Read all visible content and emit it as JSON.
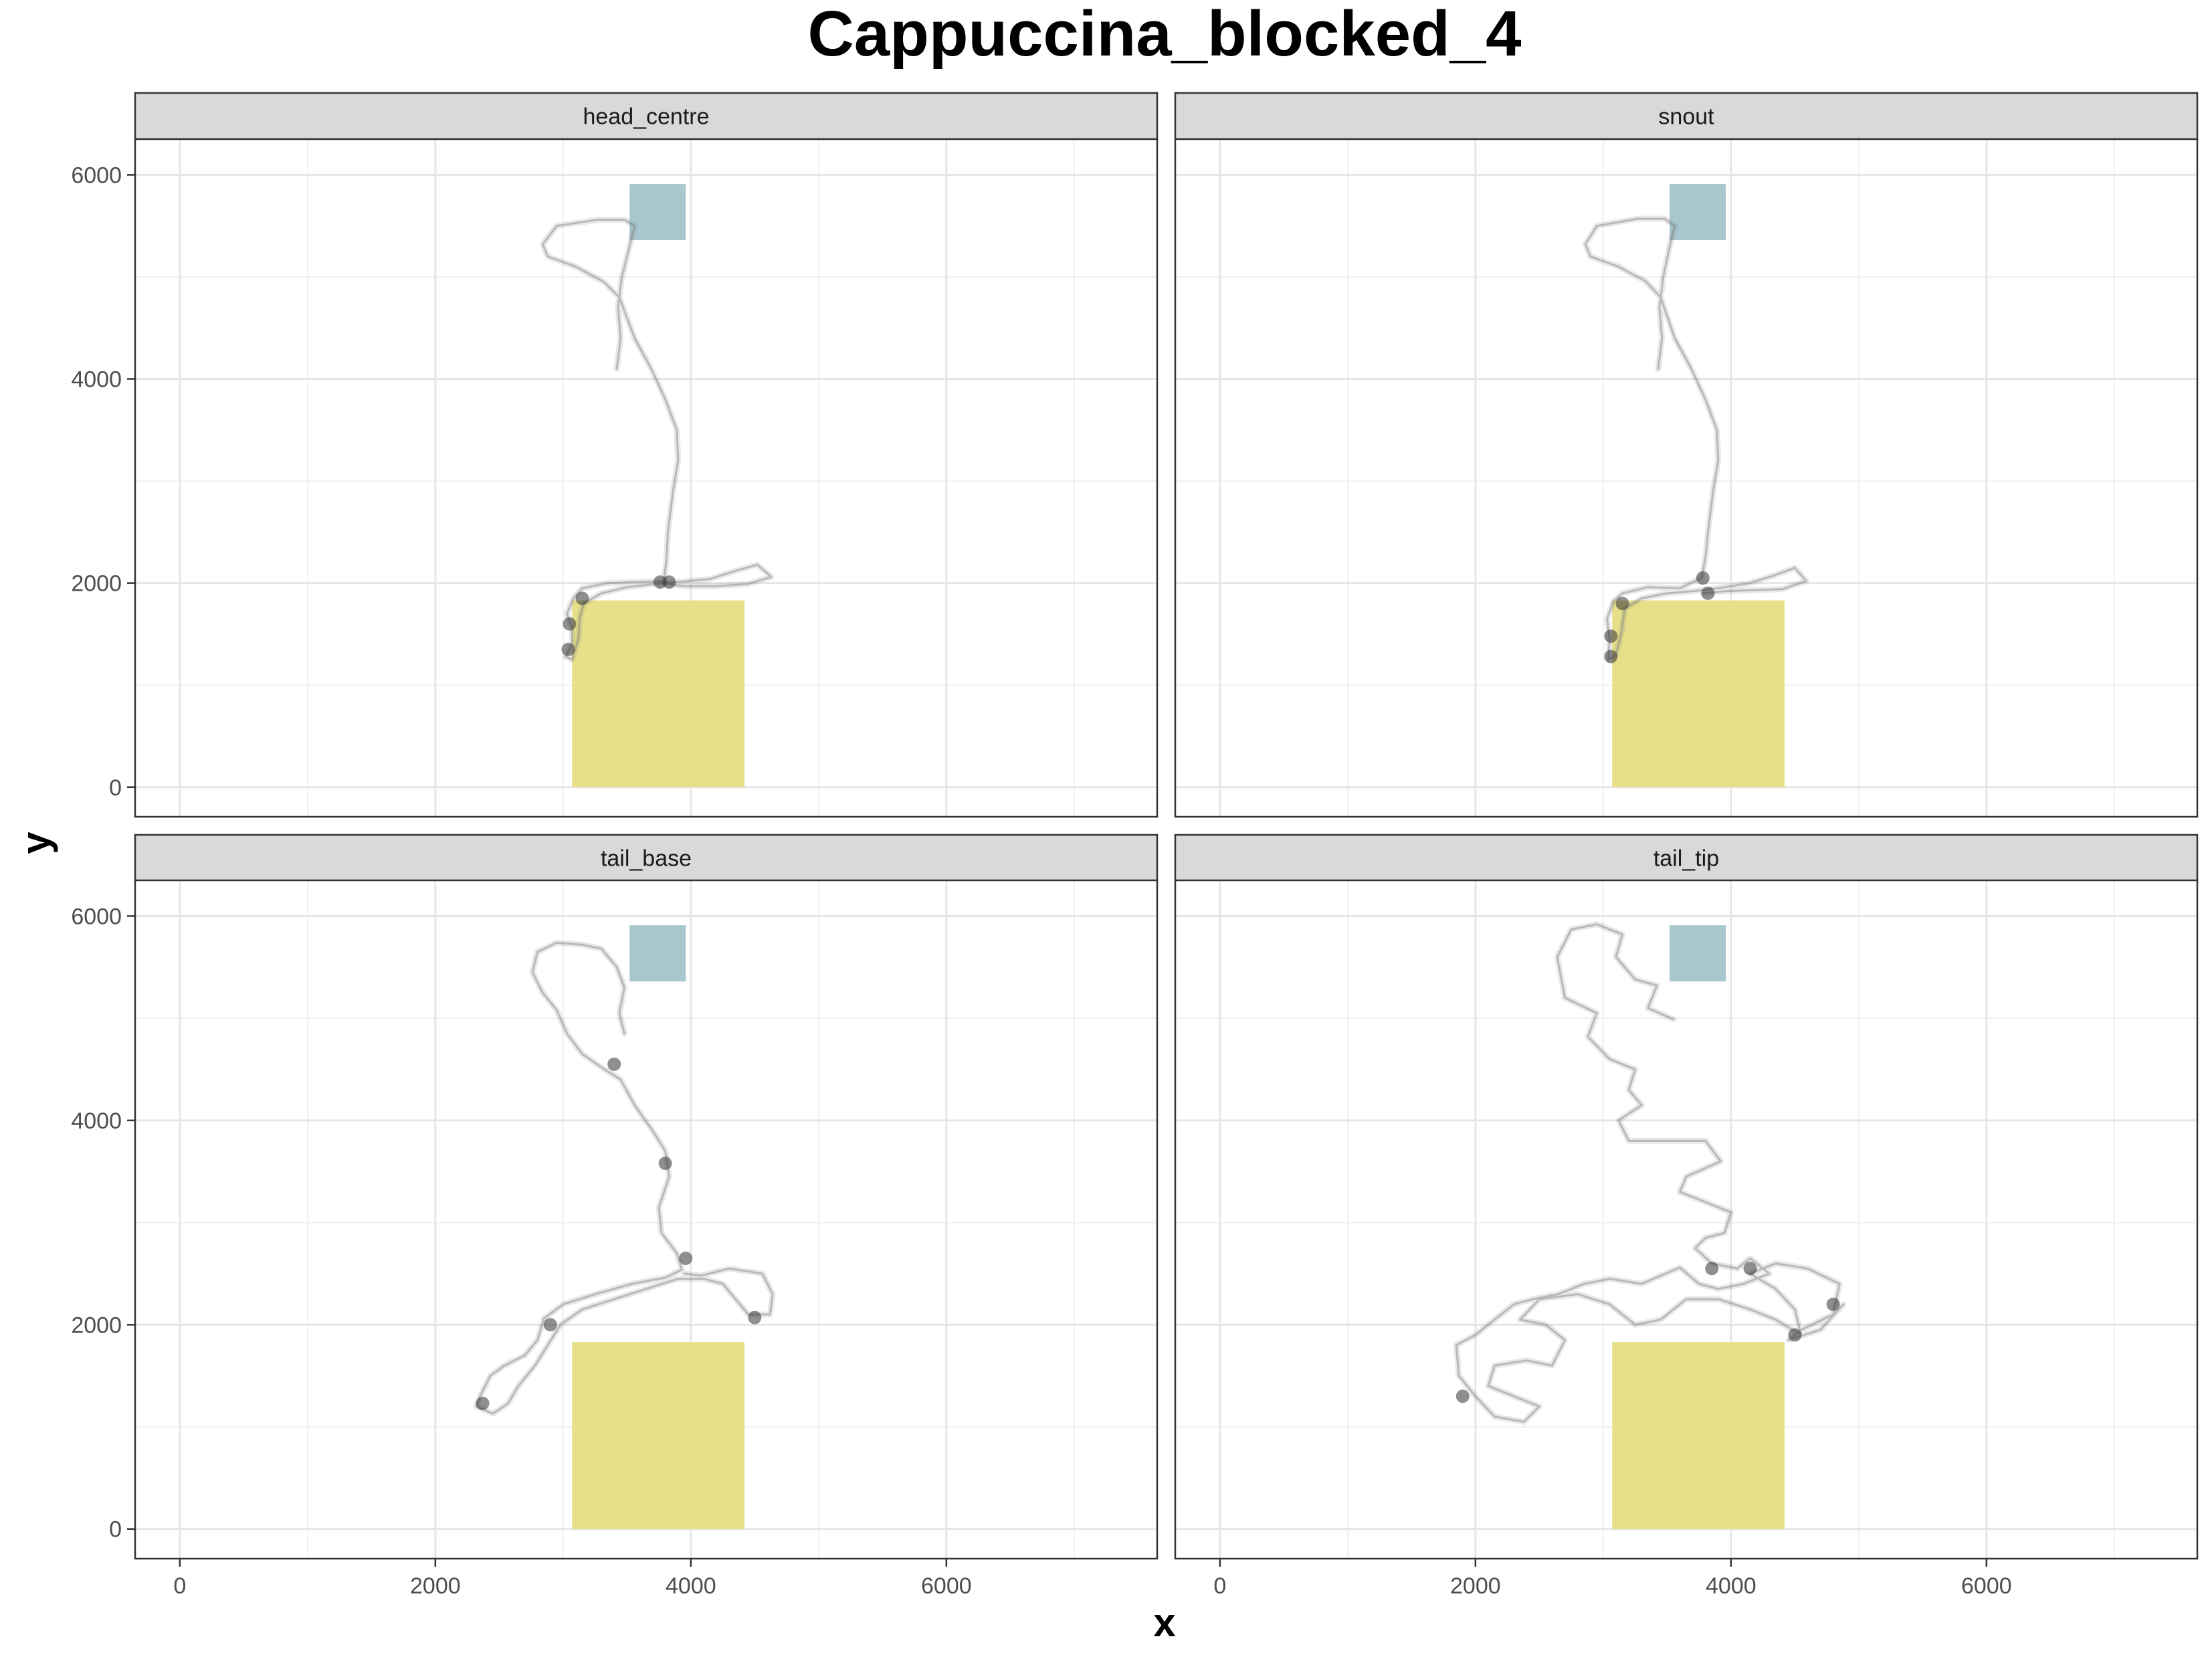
{
  "chart_data": {
    "type": "faceted-path",
    "title": "Cappuccina_blocked_4",
    "xlabel": "x",
    "ylabel": "y",
    "xlim": [
      -350,
      7650
    ],
    "ylim": [
      -290,
      6350
    ],
    "xticks": [
      0,
      2000,
      4000,
      6000
    ],
    "yticks": [
      0,
      2000,
      4000,
      6000
    ],
    "x_minor_gridlines": [
      1000,
      3000,
      5000,
      7000
    ],
    "y_minor_gridlines": [
      1000,
      3000,
      5000
    ],
    "grid": true,
    "regions": [
      {
        "color": "#e6e08a",
        "x": [
          3070,
          4420
        ],
        "y": [
          0,
          1830
        ]
      },
      {
        "color": "#a8c7ce",
        "x": [
          3520,
          3960
        ],
        "y": [
          5360,
          5910
        ]
      }
    ],
    "path_color": "#808080",
    "panels": [
      {
        "label": "head_centre",
        "path": [
          [
            3420,
            4100
          ],
          [
            3450,
            4400
          ],
          [
            3430,
            4700
          ],
          [
            3460,
            5000
          ],
          [
            3520,
            5300
          ],
          [
            3560,
            5500
          ],
          [
            3480,
            5560
          ],
          [
            3270,
            5560
          ],
          [
            2950,
            5500
          ],
          [
            2840,
            5320
          ],
          [
            2880,
            5200
          ],
          [
            3100,
            5100
          ],
          [
            3320,
            4950
          ],
          [
            3440,
            4800
          ],
          [
            3560,
            4400
          ],
          [
            3690,
            4100
          ],
          [
            3800,
            3800
          ],
          [
            3890,
            3500
          ],
          [
            3900,
            3200
          ],
          [
            3860,
            2900
          ],
          [
            3820,
            2500
          ],
          [
            3810,
            2250
          ],
          [
            3790,
            2020
          ],
          [
            3600,
            2010
          ],
          [
            3350,
            2000
          ],
          [
            3150,
            1950
          ],
          [
            3080,
            1850
          ],
          [
            3030,
            1700
          ],
          [
            3070,
            1560
          ],
          [
            3070,
            1400
          ],
          [
            3020,
            1280
          ],
          [
            3070,
            1250
          ],
          [
            3120,
            1450
          ],
          [
            3130,
            1650
          ],
          [
            3160,
            1800
          ],
          [
            3300,
            1900
          ],
          [
            3500,
            1960
          ],
          [
            3700,
            1990
          ],
          [
            3900,
            2010
          ],
          [
            4150,
            2040
          ],
          [
            4350,
            2120
          ],
          [
            4520,
            2180
          ],
          [
            4630,
            2060
          ],
          [
            4440,
            1990
          ],
          [
            4180,
            1970
          ],
          [
            3950,
            1970
          ],
          [
            3750,
            2000
          ]
        ],
        "clusters": [
          [
            3830,
            2010
          ],
          [
            3760,
            2010
          ],
          [
            3050,
            1600
          ],
          [
            3040,
            1350
          ],
          [
            3150,
            1850
          ]
        ]
      },
      {
        "label": "snout",
        "path": [
          [
            3430,
            4100
          ],
          [
            3460,
            4400
          ],
          [
            3440,
            4700
          ],
          [
            3470,
            5000
          ],
          [
            3520,
            5300
          ],
          [
            3560,
            5500
          ],
          [
            3480,
            5570
          ],
          [
            3270,
            5570
          ],
          [
            2950,
            5500
          ],
          [
            2860,
            5320
          ],
          [
            2900,
            5200
          ],
          [
            3120,
            5100
          ],
          [
            3330,
            4960
          ],
          [
            3450,
            4800
          ],
          [
            3560,
            4400
          ],
          [
            3690,
            4100
          ],
          [
            3800,
            3800
          ],
          [
            3890,
            3500
          ],
          [
            3900,
            3200
          ],
          [
            3860,
            2900
          ],
          [
            3820,
            2500
          ],
          [
            3800,
            2250
          ],
          [
            3770,
            2050
          ],
          [
            3600,
            1950
          ],
          [
            3350,
            1960
          ],
          [
            3150,
            1900
          ],
          [
            3080,
            1820
          ],
          [
            3030,
            1650
          ],
          [
            3050,
            1450
          ],
          [
            3040,
            1250
          ],
          [
            3100,
            1300
          ],
          [
            3140,
            1500
          ],
          [
            3170,
            1750
          ],
          [
            3300,
            1850
          ],
          [
            3500,
            1900
          ],
          [
            3700,
            1920
          ],
          [
            3900,
            1950
          ],
          [
            4150,
            2000
          ],
          [
            4350,
            2080
          ],
          [
            4500,
            2150
          ],
          [
            4590,
            2020
          ],
          [
            4400,
            1940
          ],
          [
            4160,
            1930
          ],
          [
            3950,
            1920
          ],
          [
            3780,
            1900
          ]
        ],
        "clusters": [
          [
            3820,
            1900
          ],
          [
            3780,
            2050
          ],
          [
            3060,
            1480
          ],
          [
            3060,
            1280
          ],
          [
            3150,
            1800
          ]
        ]
      },
      {
        "label": "tail_base",
        "path": [
          [
            3480,
            4850
          ],
          [
            3440,
            5050
          ],
          [
            3480,
            5300
          ],
          [
            3420,
            5500
          ],
          [
            3300,
            5680
          ],
          [
            3150,
            5720
          ],
          [
            2950,
            5740
          ],
          [
            2800,
            5650
          ],
          [
            2760,
            5450
          ],
          [
            2840,
            5250
          ],
          [
            2950,
            5080
          ],
          [
            3030,
            4850
          ],
          [
            3150,
            4650
          ],
          [
            3300,
            4520
          ],
          [
            3450,
            4400
          ],
          [
            3560,
            4150
          ],
          [
            3700,
            3900
          ],
          [
            3800,
            3700
          ],
          [
            3830,
            3450
          ],
          [
            3750,
            3150
          ],
          [
            3770,
            2900
          ],
          [
            3890,
            2700
          ],
          [
            3930,
            2540
          ],
          [
            3800,
            2460
          ],
          [
            3540,
            2400
          ],
          [
            3280,
            2310
          ],
          [
            3000,
            2200
          ],
          [
            2850,
            2060
          ],
          [
            2800,
            1850
          ],
          [
            2700,
            1700
          ],
          [
            2540,
            1600
          ],
          [
            2430,
            1500
          ],
          [
            2350,
            1300
          ],
          [
            2320,
            1200
          ],
          [
            2450,
            1130
          ],
          [
            2570,
            1230
          ],
          [
            2650,
            1400
          ],
          [
            2780,
            1600
          ],
          [
            2880,
            1800
          ],
          [
            2980,
            2000
          ],
          [
            3150,
            2150
          ],
          [
            3400,
            2250
          ],
          [
            3650,
            2350
          ],
          [
            3900,
            2450
          ],
          [
            4100,
            2450
          ],
          [
            4250,
            2400
          ],
          [
            4350,
            2250
          ],
          [
            4450,
            2100
          ],
          [
            4620,
            2100
          ],
          [
            4640,
            2300
          ],
          [
            4560,
            2500
          ],
          [
            4300,
            2550
          ],
          [
            4080,
            2480
          ],
          [
            3950,
            2500
          ]
        ],
        "clusters": [
          [
            3960,
            2650
          ],
          [
            4500,
            2070
          ],
          [
            2370,
            1230
          ],
          [
            2900,
            2000
          ],
          [
            3400,
            4550
          ],
          [
            3800,
            3580
          ]
        ]
      },
      {
        "label": "tail_tip",
        "path": [
          [
            3550,
            4990
          ],
          [
            3350,
            5100
          ],
          [
            3420,
            5320
          ],
          [
            3250,
            5380
          ],
          [
            3100,
            5600
          ],
          [
            3150,
            5820
          ],
          [
            2950,
            5920
          ],
          [
            2750,
            5870
          ],
          [
            2640,
            5600
          ],
          [
            2700,
            5200
          ],
          [
            2950,
            5050
          ],
          [
            2880,
            4820
          ],
          [
            3050,
            4600
          ],
          [
            3250,
            4500
          ],
          [
            3200,
            4300
          ],
          [
            3300,
            4150
          ],
          [
            3120,
            4000
          ],
          [
            3200,
            3800
          ],
          [
            3450,
            3800
          ],
          [
            3800,
            3800
          ],
          [
            3920,
            3600
          ],
          [
            3650,
            3450
          ],
          [
            3600,
            3300
          ],
          [
            3800,
            3200
          ],
          [
            4000,
            3100
          ],
          [
            3950,
            2900
          ],
          [
            3800,
            2850
          ],
          [
            3720,
            2750
          ],
          [
            3850,
            2600
          ],
          [
            4050,
            2550
          ],
          [
            4150,
            2650
          ],
          [
            4300,
            2500
          ],
          [
            4100,
            2400
          ],
          [
            3900,
            2350
          ],
          [
            3750,
            2400
          ],
          [
            3600,
            2560
          ],
          [
            3300,
            2400
          ],
          [
            3050,
            2450
          ],
          [
            2850,
            2400
          ],
          [
            2650,
            2300
          ],
          [
            2450,
            2250
          ],
          [
            2300,
            2200
          ],
          [
            2150,
            2050
          ],
          [
            2000,
            1900
          ],
          [
            1850,
            1800
          ],
          [
            1870,
            1500
          ],
          [
            2000,
            1300
          ],
          [
            2150,
            1100
          ],
          [
            2380,
            1050
          ],
          [
            2500,
            1200
          ],
          [
            2300,
            1300
          ],
          [
            2100,
            1400
          ],
          [
            2150,
            1600
          ],
          [
            2400,
            1650
          ],
          [
            2600,
            1600
          ],
          [
            2700,
            1850
          ],
          [
            2550,
            2000
          ],
          [
            2350,
            2050
          ],
          [
            2500,
            2250
          ],
          [
            2800,
            2300
          ],
          [
            3050,
            2200
          ],
          [
            3250,
            2000
          ],
          [
            3450,
            2050
          ],
          [
            3650,
            2250
          ],
          [
            3900,
            2250
          ],
          [
            4150,
            2150
          ],
          [
            4350,
            2050
          ],
          [
            4550,
            1900
          ],
          [
            4500,
            2150
          ],
          [
            4350,
            2350
          ],
          [
            4150,
            2500
          ],
          [
            4350,
            2600
          ],
          [
            4600,
            2550
          ],
          [
            4850,
            2400
          ],
          [
            4800,
            2100
          ],
          [
            4550,
            1950
          ],
          [
            4450,
            1850
          ],
          [
            4700,
            1950
          ],
          [
            4880,
            2200
          ]
        ],
        "clusters": [
          [
            1900,
            1300
          ],
          [
            4500,
            1900
          ],
          [
            4150,
            2550
          ],
          [
            3850,
            2550
          ],
          [
            4800,
            2200
          ]
        ]
      }
    ]
  }
}
